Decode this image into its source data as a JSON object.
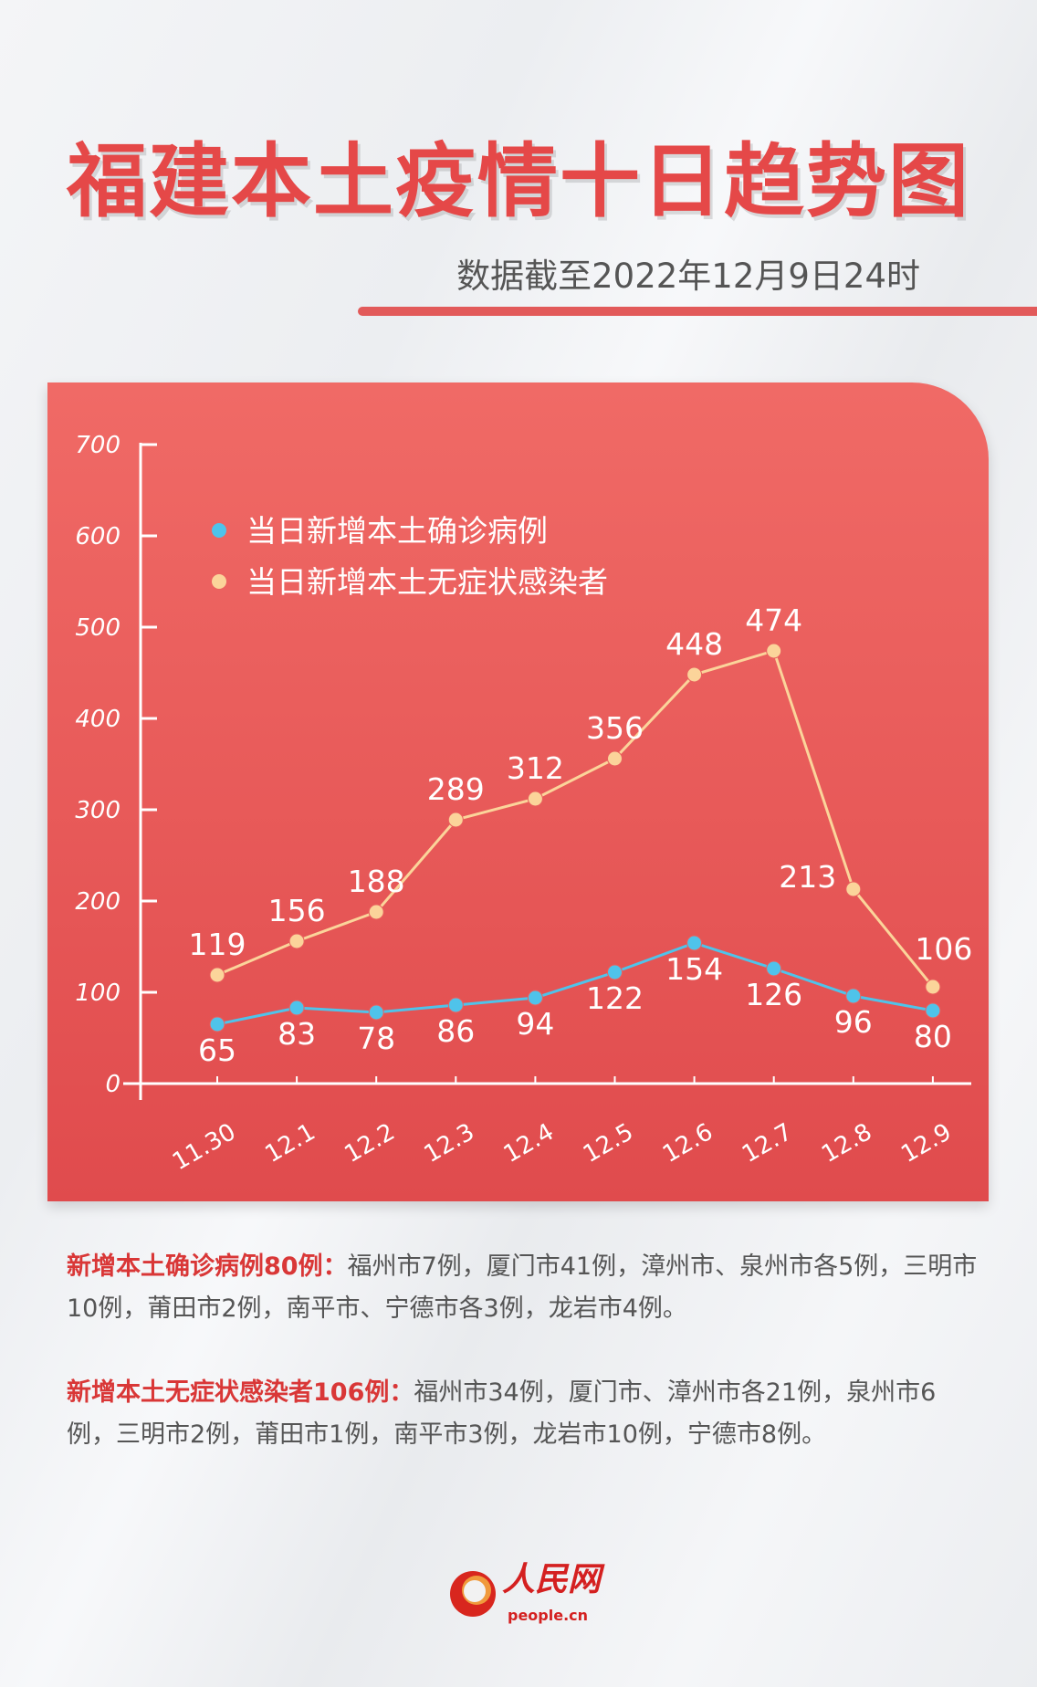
{
  "header": {
    "title": "福建本土疫情十日趋势图",
    "subtitle": "数据截至2022年12月9日24时"
  },
  "chart_data": {
    "type": "line",
    "categories": [
      "11.30",
      "12.1",
      "12.2",
      "12.3",
      "12.4",
      "12.5",
      "12.6",
      "12.7",
      "12.8",
      "12.9"
    ],
    "series": [
      {
        "name": "当日新增本土确诊病例",
        "color": "#4fc3ea",
        "values": [
          65,
          83,
          78,
          86,
          94,
          122,
          154,
          126,
          96,
          80
        ]
      },
      {
        "name": "当日新增本土无症状感染者",
        "color": "#fbd49a",
        "values": [
          119,
          156,
          188,
          289,
          312,
          356,
          448,
          474,
          213,
          106
        ]
      }
    ],
    "yticks": [
      "0",
      "100",
      "200",
      "300",
      "400",
      "500",
      "600",
      "700"
    ],
    "ylim": [
      0,
      700
    ],
    "legend_position": "top-left"
  },
  "notes": [
    {
      "head": "新增本土确诊病例80例：",
      "body": "福州市7例，厦门市41例，漳州市、泉州市各5例，三明市10例，莆田市2例，南平市、宁德市各3例，龙岩市4例。"
    },
    {
      "head": "新增本土无症状感染者106例：",
      "body": "福州市34例，厦门市、漳州市各21例，泉州市6例，三明市2例，莆田市1例，南平市3例，龙岩市10例，宁德市8例。"
    }
  ],
  "logo": {
    "cn": "人民网",
    "en": "people.cn"
  }
}
